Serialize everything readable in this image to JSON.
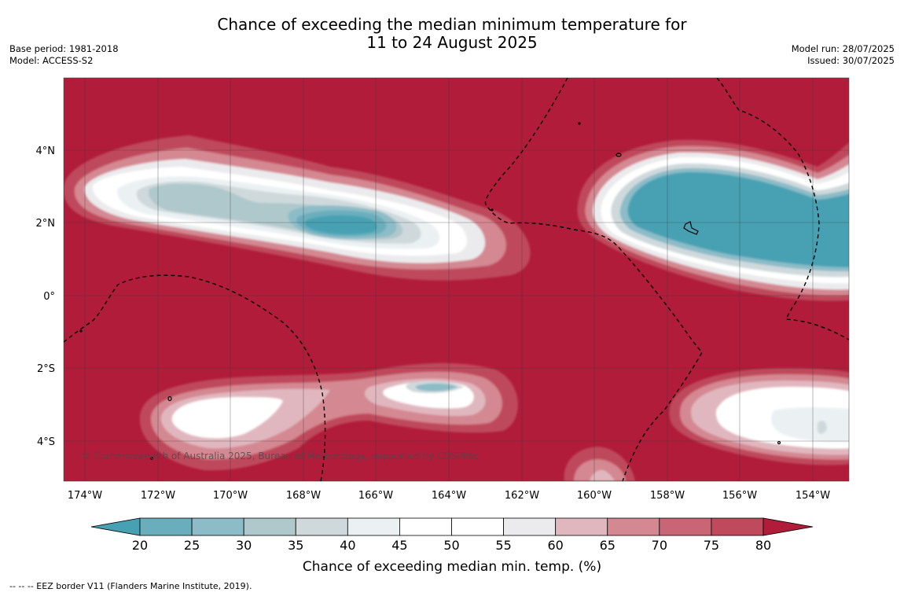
{
  "header": {
    "title_line1": "Chance of exceeding the median minimum temperature for",
    "title_line2": "11 to 24 August 2025",
    "base_period": "Base period: 1981-2018",
    "model": "Model: ACCESS-S2",
    "model_run": "Model run: 28/07/2025",
    "issued": "Issued: 30/07/2025"
  },
  "map": {
    "copyright": "© Commonwealth of Australia 2025, Bureau of Meteorology, supported by COSPPac",
    "lat_labels": [
      "4°N",
      "2°N",
      "0°",
      "2°S",
      "4°S"
    ],
    "lon_labels": [
      "174°W",
      "172°W",
      "170°W",
      "168°W",
      "166°W",
      "164°W",
      "162°W",
      "160°W",
      "158°W",
      "156°W",
      "154°W"
    ]
  },
  "colorbar": {
    "ticks": [
      "20",
      "25",
      "30",
      "35",
      "40",
      "45",
      "50",
      "55",
      "60",
      "65",
      "70",
      "75",
      "80"
    ],
    "colors": [
      "#47a1b3",
      "#6aaebd",
      "#8cbcc7",
      "#aec8cc",
      "#cfd9dc",
      "#ebf1f3",
      "#ffffff",
      "#ffffff",
      "#ebebed",
      "#e1b7bf",
      "#d48892",
      "#c96675",
      "#bf4a5b",
      "#b01c3a"
    ],
    "title": "Chance of exceeding median min. temp. (%)"
  },
  "footnote": "--  --  -- EEZ border V11 (Flanders Marine Institute, 2019)."
}
